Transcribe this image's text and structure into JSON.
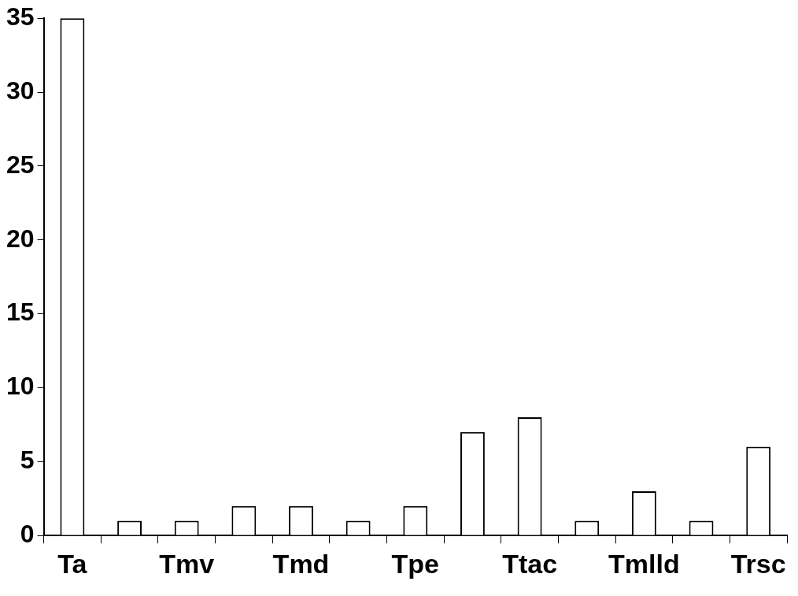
{
  "chart_data": {
    "type": "bar",
    "categories": [
      "Ta",
      null,
      "Tmv",
      null,
      "Tmd",
      null,
      "Tpe",
      null,
      "Ttac",
      null,
      "Tmlld",
      null,
      "Trsc"
    ],
    "values": [
      35,
      1,
      1,
      2,
      2,
      1,
      2,
      7,
      8,
      1,
      3,
      1,
      6
    ],
    "color": "#ffffff",
    "ylim": [
      0,
      35
    ],
    "yticks": [
      0,
      5,
      10,
      15,
      20,
      25,
      30,
      35
    ]
  }
}
